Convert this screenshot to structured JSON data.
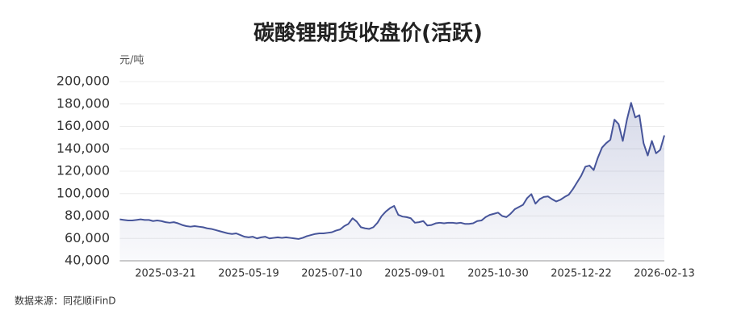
{
  "chart_data": {
    "type": "line",
    "title": "碳酸锂期货收盘价(活跃)",
    "y_unit": "元/吨",
    "source": "数据来源：同花顺iFinD",
    "categories": [
      null,
      null,
      null,
      null,
      null,
      null,
      null,
      null,
      null,
      null,
      null,
      "2025-03-21",
      null,
      null,
      null,
      null,
      null,
      null,
      null,
      null,
      null,
      null,
      null,
      null,
      null,
      null,
      null,
      null,
      null,
      null,
      null,
      "2025-05-19",
      null,
      null,
      null,
      null,
      null,
      null,
      null,
      null,
      null,
      null,
      null,
      null,
      null,
      null,
      null,
      null,
      null,
      null,
      null,
      "2025-07-10",
      null,
      null,
      null,
      null,
      null,
      null,
      null,
      null,
      null,
      null,
      null,
      null,
      null,
      null,
      null,
      null,
      null,
      null,
      null,
      "2025-09-01",
      null,
      null,
      null,
      null,
      null,
      null,
      null,
      null,
      null,
      null,
      null,
      null,
      null,
      null,
      null,
      null,
      null,
      null,
      null,
      "2025-10-30",
      null,
      null,
      null,
      null,
      null,
      null,
      null,
      null,
      null,
      null,
      null,
      null,
      null,
      null,
      null,
      null,
      null,
      null,
      null,
      "2025-12-22",
      null,
      null,
      null,
      null,
      null,
      null,
      null,
      null,
      null,
      null,
      null,
      null,
      null,
      null,
      null,
      null,
      null,
      null,
      null,
      "2026-02-13"
    ],
    "values": [
      77000,
      76500,
      76000,
      76000,
      76500,
      77000,
      76500,
      76500,
      75500,
      76000,
      75500,
      74500,
      74000,
      74500,
      73500,
      72000,
      71000,
      70500,
      71000,
      70500,
      70000,
      69000,
      68500,
      67500,
      66500,
      65500,
      64500,
      64000,
      64500,
      63000,
      61500,
      61000,
      61500,
      60000,
      61000,
      61500,
      60000,
      60500,
      61000,
      60500,
      61000,
      60500,
      60000,
      59500,
      60500,
      62000,
      63000,
      64000,
      64500,
      64500,
      65000,
      65500,
      67000,
      68000,
      71000,
      73000,
      78000,
      75000,
      70000,
      69000,
      68500,
      70000,
      74000,
      80000,
      84000,
      87000,
      89000,
      81000,
      79500,
      79000,
      78000,
      74000,
      74500,
      75500,
      71500,
      72000,
      73500,
      74000,
      73500,
      74000,
      74000,
      73500,
      74000,
      73000,
      73000,
      73500,
      75500,
      76000,
      79000,
      81000,
      82000,
      83000,
      80000,
      79000,
      82000,
      86000,
      88000,
      90000,
      96000,
      99500,
      91000,
      95000,
      97000,
      97500,
      95000,
      93000,
      94500,
      97000,
      99000,
      104000,
      110000,
      116000,
      124000,
      125000,
      121000,
      132000,
      141000,
      145000,
      148000,
      166000,
      162000,
      147000,
      166000,
      181000,
      168000,
      170000,
      145000,
      134000,
      147000,
      136000,
      139000,
      152000
    ],
    "color": "#47559a",
    "ylim": [
      40000,
      200000
    ],
    "yticks": [
      {
        "value": 40000,
        "label": "40,000"
      },
      {
        "value": 60000,
        "label": "60,000"
      },
      {
        "value": 80000,
        "label": "80,000"
      },
      {
        "value": 100000,
        "label": "100,000"
      },
      {
        "value": 120000,
        "label": "120,000"
      },
      {
        "value": 140000,
        "label": "140,000"
      },
      {
        "value": 160000,
        "label": "160,000"
      },
      {
        "value": 180000,
        "label": "180,000"
      },
      {
        "value": 200000,
        "label": "200,000"
      }
    ],
    "grid": true
  }
}
